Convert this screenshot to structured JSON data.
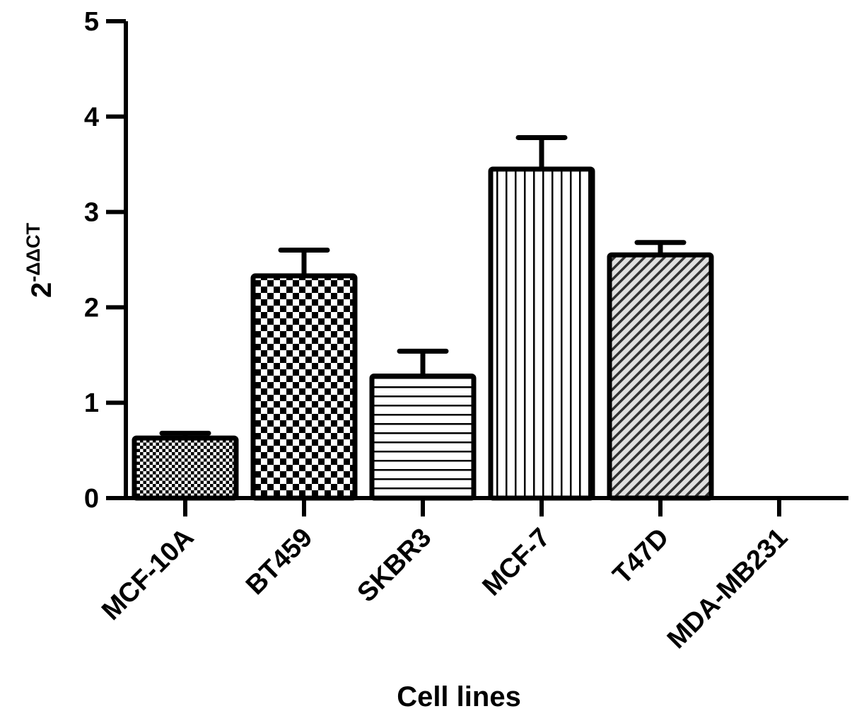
{
  "chart_data": {
    "type": "bar",
    "categories": [
      "MCF-10A",
      "BT459",
      "SKBR3",
      "MCF-7",
      "T47D",
      "MDA-MB231"
    ],
    "values": [
      0.63,
      2.33,
      1.28,
      3.45,
      2.55,
      0
    ],
    "errors": [
      0.05,
      0.27,
      0.26,
      0.33,
      0.13,
      0
    ],
    "patterns": [
      "dots",
      "checker",
      "hlines",
      "vlines",
      "diagonal",
      "none"
    ],
    "xlabel": "Cell lines",
    "ylabel_base": "2",
    "ylabel_exp": "-ΔΔCT",
    "ylim": [
      0,
      5
    ],
    "yticks": [
      0,
      1,
      2,
      3,
      4,
      5
    ],
    "grid": false,
    "colors": {
      "bar_stroke": "#000000",
      "bar_fill": "#ffffff"
    }
  }
}
